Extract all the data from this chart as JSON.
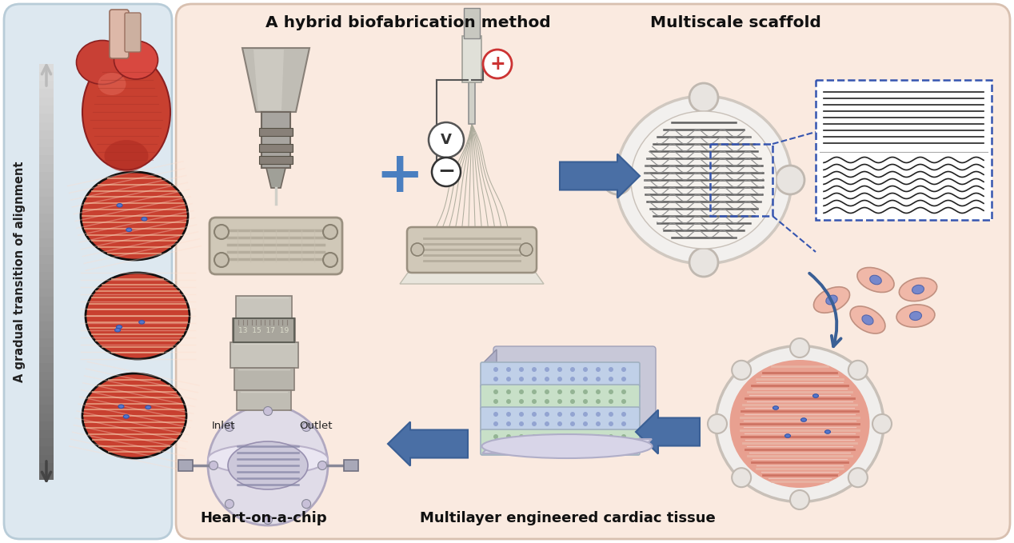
{
  "left_bg_color": "#dde8f0",
  "right_bg_color": "#faeae0",
  "left_text": "A gradual transition of alignment",
  "title_hybrid": "A hybrid biofabrication method",
  "title_scaffold": "Multiscale scaffold",
  "title_heart_chip": "Heart-on-a-chip",
  "title_multilayer": "Multilayer engineered cardiac tissue",
  "inlet_label": "Inlet",
  "outlet_label": "Outlet",
  "arrow_color": "#4a6fa5",
  "figsize": [
    12.68,
    6.79
  ],
  "dpi": 100
}
